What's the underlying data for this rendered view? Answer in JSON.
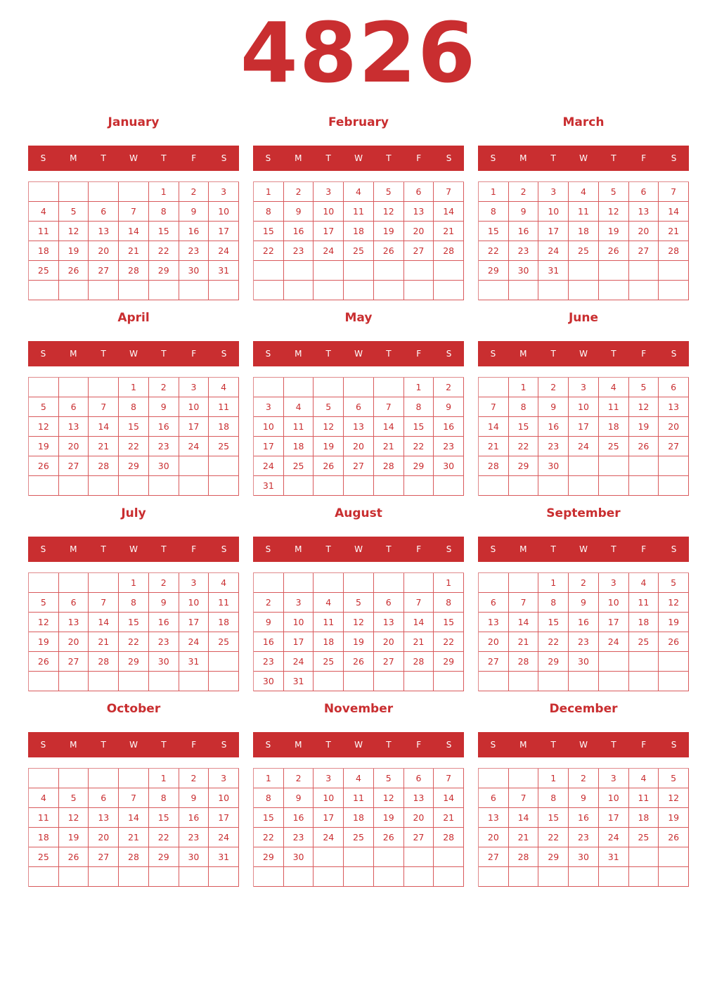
{
  "year": "4826",
  "accent_color": "#C92E30",
  "weekdays": [
    "S",
    "M",
    "T",
    "W",
    "T",
    "F",
    "S"
  ],
  "months": [
    {
      "name": "January",
      "start_weekday": 4,
      "days": 31
    },
    {
      "name": "February",
      "start_weekday": 0,
      "days": 28
    },
    {
      "name": "March",
      "start_weekday": 0,
      "days": 31
    },
    {
      "name": "April",
      "start_weekday": 3,
      "days": 30
    },
    {
      "name": "May",
      "start_weekday": 5,
      "days": 31
    },
    {
      "name": "June",
      "start_weekday": 1,
      "days": 30
    },
    {
      "name": "July",
      "start_weekday": 3,
      "days": 31
    },
    {
      "name": "August",
      "start_weekday": 6,
      "days": 31
    },
    {
      "name": "September",
      "start_weekday": 2,
      "days": 30
    },
    {
      "name": "October",
      "start_weekday": 4,
      "days": 31
    },
    {
      "name": "November",
      "start_weekday": 0,
      "days": 30
    },
    {
      "name": "December",
      "start_weekday": 2,
      "days": 31
    }
  ]
}
